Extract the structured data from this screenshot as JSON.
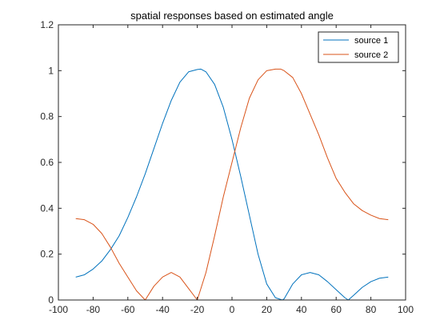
{
  "chart_data": {
    "type": "line",
    "title": "spatial responses based on estimated angle",
    "xlabel": "",
    "ylabel": "",
    "xlim": [
      -100,
      100
    ],
    "ylim": [
      0,
      1.2
    ],
    "xticks": [
      -100,
      -80,
      -60,
      -40,
      -20,
      0,
      20,
      40,
      60,
      80,
      100
    ],
    "yticks": [
      0,
      0.2,
      0.4,
      0.6,
      0.8,
      1,
      1.2
    ],
    "xtick_labels": [
      "-100",
      "-80",
      "-60",
      "-40",
      "-20",
      "0",
      "20",
      "40",
      "60",
      "80",
      "100"
    ],
    "ytick_labels": [
      "0",
      "0.2",
      "0.4",
      "0.6",
      "0.8",
      "1",
      "1.2"
    ],
    "grid": false,
    "legend_position": "top-right",
    "series": [
      {
        "name": "source 1",
        "color": "#0072BD",
        "x": [
          -90,
          -85,
          -80,
          -75,
          -70,
          -65,
          -60,
          -55,
          -50,
          -45,
          -40,
          -35,
          -30,
          -25,
          -20,
          -18,
          -15,
          -10,
          -5,
          0,
          5,
          10,
          15,
          20,
          25,
          29,
          30,
          35,
          40,
          45,
          50,
          55,
          60,
          65,
          67,
          70,
          75,
          80,
          85,
          90
        ],
        "y": [
          0.1,
          0.11,
          0.135,
          0.17,
          0.22,
          0.28,
          0.36,
          0.45,
          0.55,
          0.66,
          0.77,
          0.87,
          0.95,
          0.995,
          1.005,
          1.007,
          0.995,
          0.94,
          0.84,
          0.7,
          0.54,
          0.37,
          0.2,
          0.07,
          0.01,
          0.0,
          0.005,
          0.07,
          0.11,
          0.12,
          0.11,
          0.08,
          0.045,
          0.01,
          0.0,
          0.02,
          0.055,
          0.08,
          0.095,
          0.1
        ]
      },
      {
        "name": "source 2",
        "color": "#D95319",
        "x": [
          -90,
          -85,
          -80,
          -75,
          -70,
          -65,
          -60,
          -55,
          -50,
          -45,
          -40,
          -35,
          -30,
          -25,
          -20,
          -15,
          -10,
          -5,
          0,
          5,
          10,
          15,
          20,
          25,
          28,
          30,
          35,
          40,
          45,
          50,
          55,
          60,
          65,
          70,
          75,
          80,
          85,
          90
        ],
        "y": [
          0.355,
          0.35,
          0.33,
          0.29,
          0.23,
          0.16,
          0.1,
          0.04,
          0.0,
          0.06,
          0.1,
          0.12,
          0.1,
          0.05,
          0.0,
          0.12,
          0.28,
          0.45,
          0.6,
          0.75,
          0.88,
          0.96,
          1.0,
          1.007,
          1.007,
          1.0,
          0.97,
          0.9,
          0.81,
          0.72,
          0.62,
          0.53,
          0.47,
          0.42,
          0.39,
          0.37,
          0.355,
          0.35
        ]
      }
    ]
  }
}
